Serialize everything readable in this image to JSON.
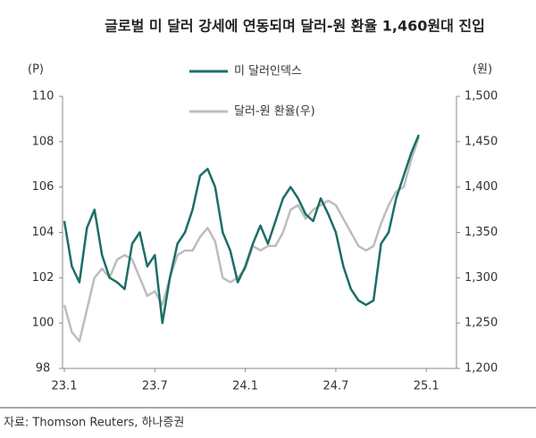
{
  "chart_data": {
    "type": "line",
    "title": "글로벌 미 달러 강세에 연동되며 달러-원 환율 1,460원대 진입",
    "y_label": "(P)",
    "y2_label": "(원)",
    "source": "자료: Thomson Reuters, 하나증권",
    "x": [
      0,
      0.5,
      1,
      1.5,
      2,
      2.5,
      3,
      3.5,
      4,
      4.5,
      5,
      5.5,
      6,
      6.5,
      7,
      7.5,
      8,
      8.5,
      9,
      9.5,
      10,
      10.5,
      11,
      11.5,
      12,
      12.5,
      13,
      13.5,
      14,
      14.5,
      15,
      15.5,
      16,
      16.5,
      17,
      17.5,
      18,
      18.5,
      19,
      19.5,
      20,
      20.5,
      21,
      21.5,
      22,
      22.5,
      23,
      23.5
    ],
    "xlim": [
      0,
      26
    ],
    "xticks": [
      {
        "value": 0,
        "label": "23.1"
      },
      {
        "value": 6,
        "label": "23.7"
      },
      {
        "value": 12,
        "label": "24.1"
      },
      {
        "value": 18,
        "label": "24.7"
      },
      {
        "value": 24,
        "label": "25.1"
      }
    ],
    "ylim": [
      98,
      110
    ],
    "yticks": [
      98,
      100,
      102,
      104,
      106,
      108,
      110
    ],
    "y2lim": [
      1200,
      1500
    ],
    "y2ticks": [
      {
        "value": 1200,
        "label": "1,200"
      },
      {
        "value": 1250,
        "label": "1,250"
      },
      {
        "value": 1300,
        "label": "1,300"
      },
      {
        "value": 1350,
        "label": "1,350"
      },
      {
        "value": 1400,
        "label": "1,400"
      },
      {
        "value": 1450,
        "label": "1,450"
      },
      {
        "value": 1500,
        "label": "1,500"
      }
    ],
    "series": [
      {
        "name": "미 달러인덱스",
        "color": "#1b6e68",
        "values": [
          104.5,
          102.5,
          101.8,
          104.2,
          105,
          103,
          102,
          101.8,
          101.5,
          103.5,
          104,
          102.5,
          103,
          100,
          102,
          103.5,
          104,
          105,
          106.5,
          106.8,
          106,
          104,
          103.2,
          101.8,
          102.5,
          103.5,
          104.3,
          103.5,
          104.5,
          105.5,
          106,
          105.5,
          104.8,
          104.5,
          105.5,
          104.8,
          104,
          102.5,
          101.5,
          101,
          100.8,
          101,
          103.5,
          104,
          105.5,
          106.5,
          107.5,
          108.3
        ]
      },
      {
        "name": "달러-원 환율(우)",
        "color": "#bdbdbd",
        "axis": "y2",
        "values": [
          1270,
          1240,
          1230,
          1265,
          1300,
          1310,
          1300,
          1320,
          1325,
          1320,
          1300,
          1280,
          1285,
          1270,
          1300,
          1325,
          1330,
          1330,
          1345,
          1355,
          1340,
          1300,
          1295,
          1300,
          1310,
          1335,
          1330,
          1335,
          1335,
          1350,
          1375,
          1380,
          1365,
          1375,
          1380,
          1385,
          1380,
          1365,
          1350,
          1335,
          1330,
          1335,
          1360,
          1380,
          1395,
          1400,
          1430,
          1455
        ]
      }
    ]
  }
}
